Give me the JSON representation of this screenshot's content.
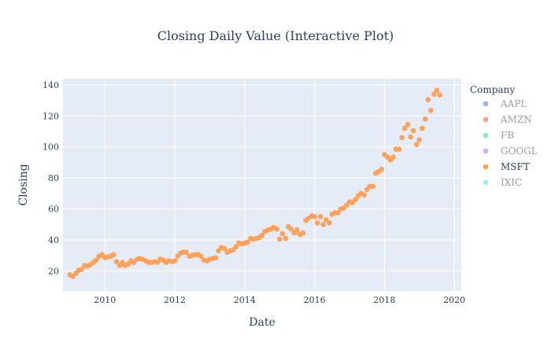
{
  "chart_data": {
    "type": "scatter",
    "title": "Closing Daily Value (Interactive Plot)",
    "xlabel": "Date",
    "ylabel": "Closing",
    "xlim": [
      2008.8,
      2020.2
    ],
    "ylim": [
      7,
      144
    ],
    "x_ticks": [
      2010,
      2012,
      2014,
      2016,
      2018,
      2020
    ],
    "y_ticks": [
      20,
      40,
      60,
      80,
      100,
      120,
      140
    ],
    "grid": true,
    "legend": {
      "title": "Company",
      "placement": "right",
      "items": [
        {
          "name": "AAPL",
          "color": "#9fb3e8",
          "active": false
        },
        {
          "name": "AMZN",
          "color": "#f6a58d",
          "active": false
        },
        {
          "name": "FB",
          "color": "#8fe3cc",
          "active": false
        },
        {
          "name": "GOOGL",
          "color": "#d2b0f7",
          "active": false
        },
        {
          "name": "MSFT",
          "color": "#FFA15A",
          "active": true
        },
        {
          "name": "IXIC",
          "color": "#9fe8f4",
          "active": false
        }
      ]
    },
    "series": [
      {
        "name": "MSFT",
        "color": "#FFA15A",
        "points": [
          [
            2009.0,
            17.5
          ],
          [
            2009.08,
            16.5
          ],
          [
            2009.17,
            18.5
          ],
          [
            2009.25,
            20.5
          ],
          [
            2009.33,
            21.0
          ],
          [
            2009.42,
            23.5
          ],
          [
            2009.5,
            23.0
          ],
          [
            2009.58,
            24.0
          ],
          [
            2009.67,
            25.5
          ],
          [
            2009.75,
            27.0
          ],
          [
            2009.83,
            29.5
          ],
          [
            2009.92,
            30.5
          ],
          [
            2010.0,
            28.5
          ],
          [
            2010.08,
            29.0
          ],
          [
            2010.17,
            29.5
          ],
          [
            2010.25,
            30.5
          ],
          [
            2010.33,
            26.0
          ],
          [
            2010.42,
            23.5
          ],
          [
            2010.5,
            25.5
          ],
          [
            2010.58,
            23.5
          ],
          [
            2010.67,
            24.5
          ],
          [
            2010.75,
            26.5
          ],
          [
            2010.83,
            25.5
          ],
          [
            2010.92,
            27.5
          ],
          [
            2011.0,
            28.0
          ],
          [
            2011.08,
            27.5
          ],
          [
            2011.17,
            26.5
          ],
          [
            2011.25,
            25.5
          ],
          [
            2011.33,
            25.5
          ],
          [
            2011.42,
            26.0
          ],
          [
            2011.5,
            25.5
          ],
          [
            2011.58,
            27.5
          ],
          [
            2011.67,
            27.0
          ],
          [
            2011.75,
            25.5
          ],
          [
            2011.83,
            26.5
          ],
          [
            2011.92,
            26.0
          ],
          [
            2012.0,
            26.5
          ],
          [
            2012.08,
            29.5
          ],
          [
            2012.17,
            31.5
          ],
          [
            2012.25,
            32.0
          ],
          [
            2012.33,
            32.0
          ],
          [
            2012.42,
            29.5
          ],
          [
            2012.5,
            30.0
          ],
          [
            2012.58,
            30.5
          ],
          [
            2012.67,
            30.5
          ],
          [
            2012.75,
            29.5
          ],
          [
            2012.83,
            27.0
          ],
          [
            2012.92,
            26.5
          ],
          [
            2013.0,
            27.5
          ],
          [
            2013.08,
            28.0
          ],
          [
            2013.17,
            28.5
          ],
          [
            2013.25,
            33.0
          ],
          [
            2013.33,
            35.0
          ],
          [
            2013.42,
            34.5
          ],
          [
            2013.5,
            32.0
          ],
          [
            2013.58,
            33.0
          ],
          [
            2013.67,
            33.5
          ],
          [
            2013.75,
            35.5
          ],
          [
            2013.83,
            38.0
          ],
          [
            2013.92,
            37.5
          ],
          [
            2014.0,
            38.0
          ],
          [
            2014.08,
            38.5
          ],
          [
            2014.17,
            41.0
          ],
          [
            2014.25,
            40.5
          ],
          [
            2014.33,
            41.0
          ],
          [
            2014.42,
            41.5
          ],
          [
            2014.5,
            43.0
          ],
          [
            2014.58,
            45.5
          ],
          [
            2014.67,
            46.5
          ],
          [
            2014.75,
            47.0
          ],
          [
            2014.83,
            48.0
          ],
          [
            2014.92,
            47.0
          ],
          [
            2015.0,
            40.5
          ],
          [
            2015.08,
            44.0
          ],
          [
            2015.17,
            41.0
          ],
          [
            2015.25,
            48.5
          ],
          [
            2015.33,
            47.0
          ],
          [
            2015.42,
            44.5
          ],
          [
            2015.5,
            46.5
          ],
          [
            2015.58,
            43.5
          ],
          [
            2015.67,
            44.5
          ],
          [
            2015.75,
            52.5
          ],
          [
            2015.83,
            54.0
          ],
          [
            2015.92,
            55.5
          ],
          [
            2016.0,
            55.0
          ],
          [
            2016.08,
            51.0
          ],
          [
            2016.17,
            55.0
          ],
          [
            2016.25,
            50.0
          ],
          [
            2016.33,
            53.0
          ],
          [
            2016.42,
            51.0
          ],
          [
            2016.5,
            56.5
          ],
          [
            2016.58,
            57.5
          ],
          [
            2016.67,
            57.5
          ],
          [
            2016.75,
            60.0
          ],
          [
            2016.83,
            60.5
          ],
          [
            2016.92,
            62.5
          ],
          [
            2017.0,
            64.5
          ],
          [
            2017.08,
            64.0
          ],
          [
            2017.17,
            66.0
          ],
          [
            2017.25,
            68.5
          ],
          [
            2017.33,
            70.0
          ],
          [
            2017.42,
            69.0
          ],
          [
            2017.5,
            72.5
          ],
          [
            2017.58,
            74.5
          ],
          [
            2017.67,
            74.5
          ],
          [
            2017.75,
            83.0
          ],
          [
            2017.83,
            84.0
          ],
          [
            2017.92,
            85.5
          ],
          [
            2018.0,
            95.0
          ],
          [
            2018.08,
            93.5
          ],
          [
            2018.17,
            91.5
          ],
          [
            2018.25,
            93.5
          ],
          [
            2018.33,
            98.5
          ],
          [
            2018.42,
            98.5
          ],
          [
            2018.5,
            106.0
          ],
          [
            2018.58,
            112.0
          ],
          [
            2018.67,
            114.5
          ],
          [
            2018.75,
            106.5
          ],
          [
            2018.83,
            110.5
          ],
          [
            2018.92,
            101.5
          ],
          [
            2019.0,
            104.5
          ],
          [
            2019.08,
            112.0
          ],
          [
            2019.17,
            118.0
          ],
          [
            2019.25,
            130.5
          ],
          [
            2019.33,
            123.5
          ],
          [
            2019.42,
            134.0
          ],
          [
            2019.5,
            136.5
          ],
          [
            2019.58,
            133.5
          ]
        ]
      }
    ]
  }
}
